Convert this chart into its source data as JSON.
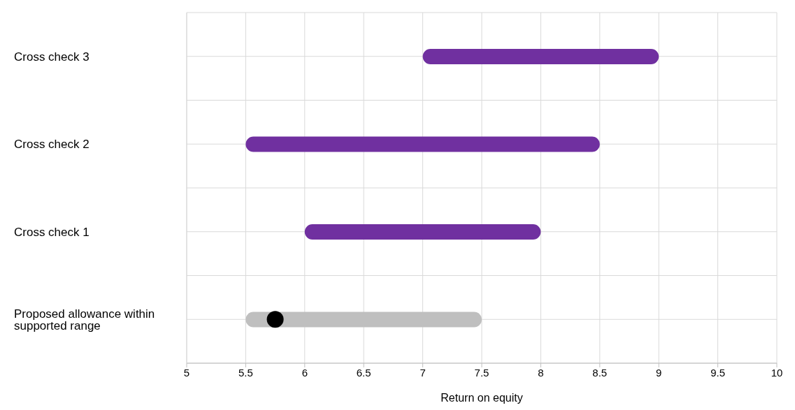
{
  "chart_data": {
    "type": "bar",
    "orientation": "horizontal",
    "categories": [
      "Cross check 3",
      "Cross check 2",
      "Cross check 1",
      "Proposed allowance within supported range"
    ],
    "series": [
      {
        "base": [
          7,
          5.5,
          6,
          5.5
        ],
        "values": [
          2,
          3,
          2,
          2
        ],
        "colors": [
          "#7030a0",
          "#7030a0",
          "#7030a0",
          "#bfbfbf"
        ]
      },
      {
        "type": "scatter",
        "values": [
          null,
          null,
          null,
          5.75
        ],
        "color": "#000000"
      }
    ],
    "xlim": [
      5,
      10
    ],
    "xticks": [
      5,
      5.5,
      6,
      6.5,
      7,
      7.5,
      8,
      8.5,
      9,
      9.5,
      10
    ],
    "xlabel": "Return on equity",
    "grid": true
  }
}
